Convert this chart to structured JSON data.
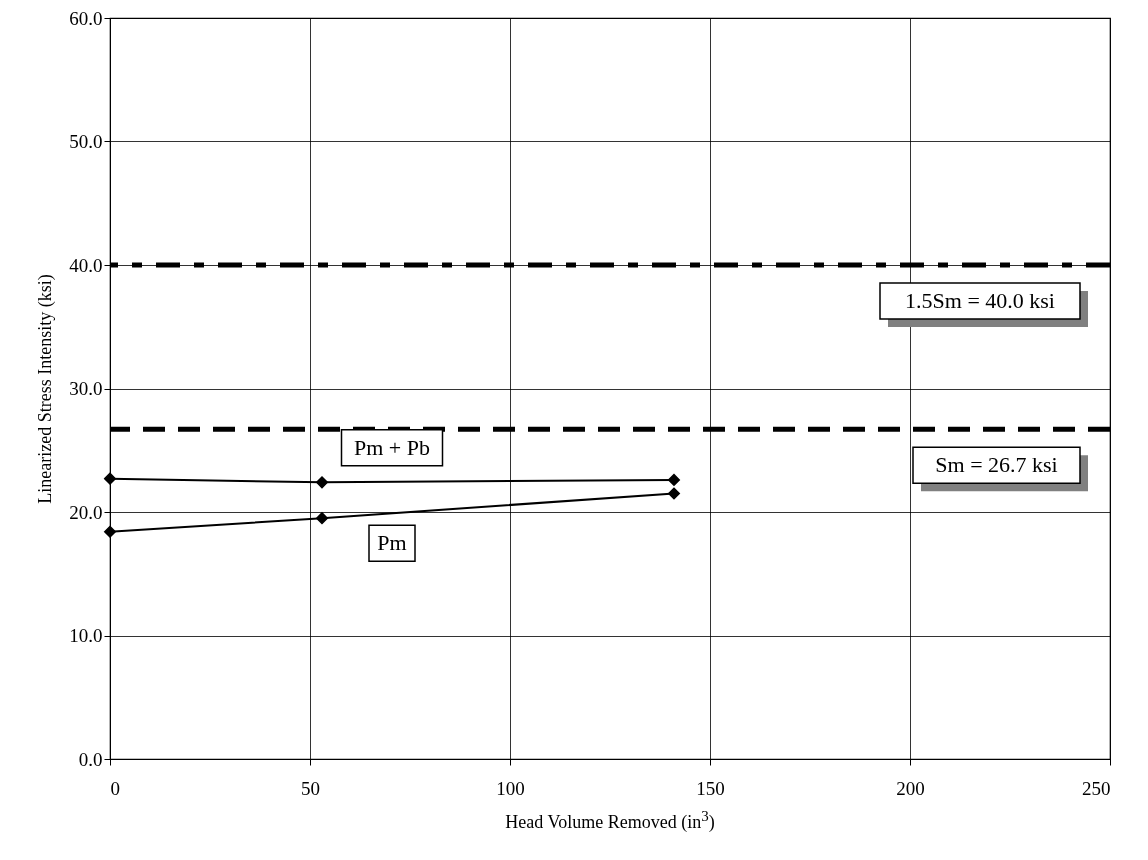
{
  "chart_data": {
    "type": "line",
    "xlabel": "Head Volume Removed (in$^{3}$)",
    "ylabel": "Linearized Stress Intensity (ksi)",
    "x": [
      0,
      53,
      141
    ],
    "series": [
      {
        "name": "Pm + Pb",
        "color": "#000000",
        "values": [
          22.7,
          22.4,
          22.6
        ]
      },
      {
        "name": "Pm",
        "color": "#000000",
        "values": [
          18.4,
          19.5,
          21.5
        ]
      }
    ],
    "xlim": [
      0,
      250
    ],
    "xticks": [
      0,
      50,
      100,
      150,
      200,
      250
    ],
    "ylim": [
      0,
      60
    ],
    "yticks": [
      {
        "value": 0,
        "label": "0.0"
      },
      {
        "value": 10,
        "label": "10.0"
      },
      {
        "value": 20,
        "label": "20.0"
      },
      {
        "value": 30,
        "label": "30.0"
      },
      {
        "value": 40,
        "label": "40.0"
      },
      {
        "value": 50,
        "label": "50.0"
      },
      {
        "value": 60,
        "label": "60.0"
      }
    ],
    "ref_lines": [
      {
        "axis": "y",
        "value": 40,
        "label": "1.5Sm = 40.0 ksi",
        "color": "#000000",
        "line_style": "dashdot"
      },
      {
        "axis": "y",
        "value": 26.7,
        "label": "Sm = 26.7 ksi",
        "color": "#000000",
        "line_style": "dashed"
      }
    ],
    "grid": true,
    "marker": "diamond",
    "line_style": "solid"
  }
}
